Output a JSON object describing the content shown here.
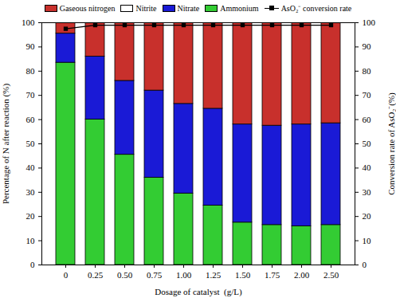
{
  "chart_data": {
    "type": "bar",
    "stacked": true,
    "categories": [
      "0",
      "0.25",
      "0.50",
      "0.75",
      "1.00",
      "1.25",
      "1.50",
      "1.75",
      "2.00",
      "2.50"
    ],
    "x_label": "Dosage of catalyst  (g/L)",
    "y_label": "Percentage of N after reaction (%)",
    "y2_label": "Conversion rate of AsO₂⁻(%)",
    "ylim": [
      0,
      100
    ],
    "yticks": [
      0,
      10,
      20,
      30,
      40,
      50,
      60,
      70,
      80,
      90,
      100
    ],
    "y2lim": [
      0,
      100
    ],
    "y2ticks": [
      0,
      10,
      20,
      30,
      40,
      50,
      60,
      70,
      80,
      90,
      100
    ],
    "grid": false,
    "legend": "top",
    "series": [
      {
        "name": "Gaseous nitrogen",
        "color": "#c8302c",
        "values": [
          4.5,
          14,
          24,
          28,
          33.5,
          35.5,
          42,
          42.5,
          42,
          41.5
        ]
      },
      {
        "name": "Nitrite",
        "color": "#ffffff",
        "values": [
          0,
          0,
          0,
          0,
          0,
          0,
          0,
          0,
          0,
          0
        ]
      },
      {
        "name": "Nitrate",
        "color": "#1a1ad6",
        "values": [
          12,
          26,
          30.5,
          36,
          37,
          40,
          40.5,
          41,
          42,
          42
        ]
      },
      {
        "name": "Ammonium",
        "color": "#33cc33",
        "values": [
          83.5,
          60,
          45.5,
          36,
          29.5,
          24.5,
          17.5,
          16.5,
          16,
          16.5
        ]
      },
      {
        "name": "AsO₂⁻ conversion rate",
        "type": "line",
        "axis": "y2",
        "color": "#000000",
        "marker": "square",
        "values": [
          97.5,
          99,
          99,
          99,
          99,
          99,
          99,
          99,
          99,
          99
        ]
      }
    ]
  }
}
